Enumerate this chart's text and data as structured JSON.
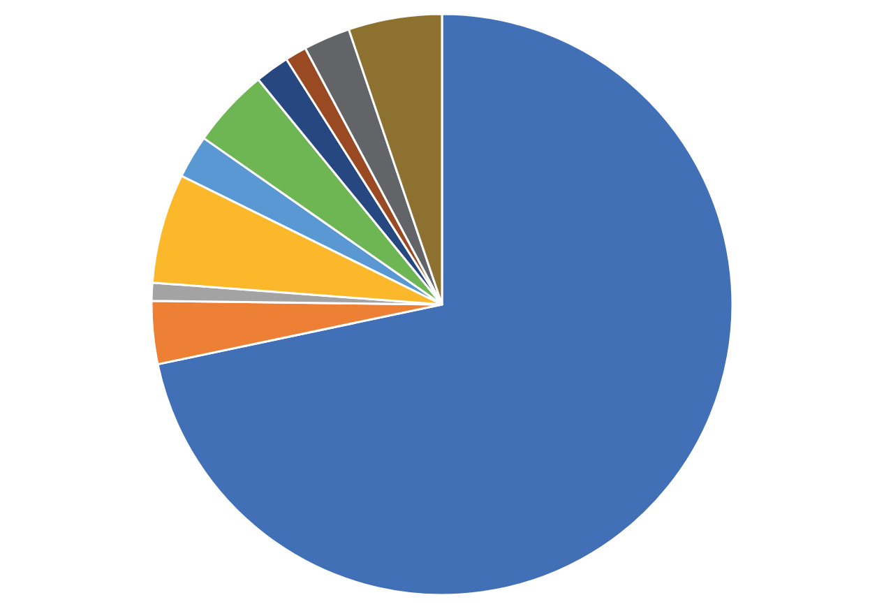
{
  "chart_data": {
    "type": "pie",
    "categories": [
      null,
      null,
      null,
      null,
      null,
      null,
      null,
      null,
      null,
      null
    ],
    "values": [
      71.7,
      3.5,
      1.0,
      6.1,
      2.4,
      4.4,
      1.9,
      1.2,
      2.6,
      5.2
    ],
    "colors": [
      "#4270b7",
      "#ee8036",
      "#a3a3a3",
      "#fbb82a",
      "#5a98d3",
      "#6db653",
      "#264780",
      "#9a4a22",
      "#626468",
      "#8c7130"
    ]
  }
}
